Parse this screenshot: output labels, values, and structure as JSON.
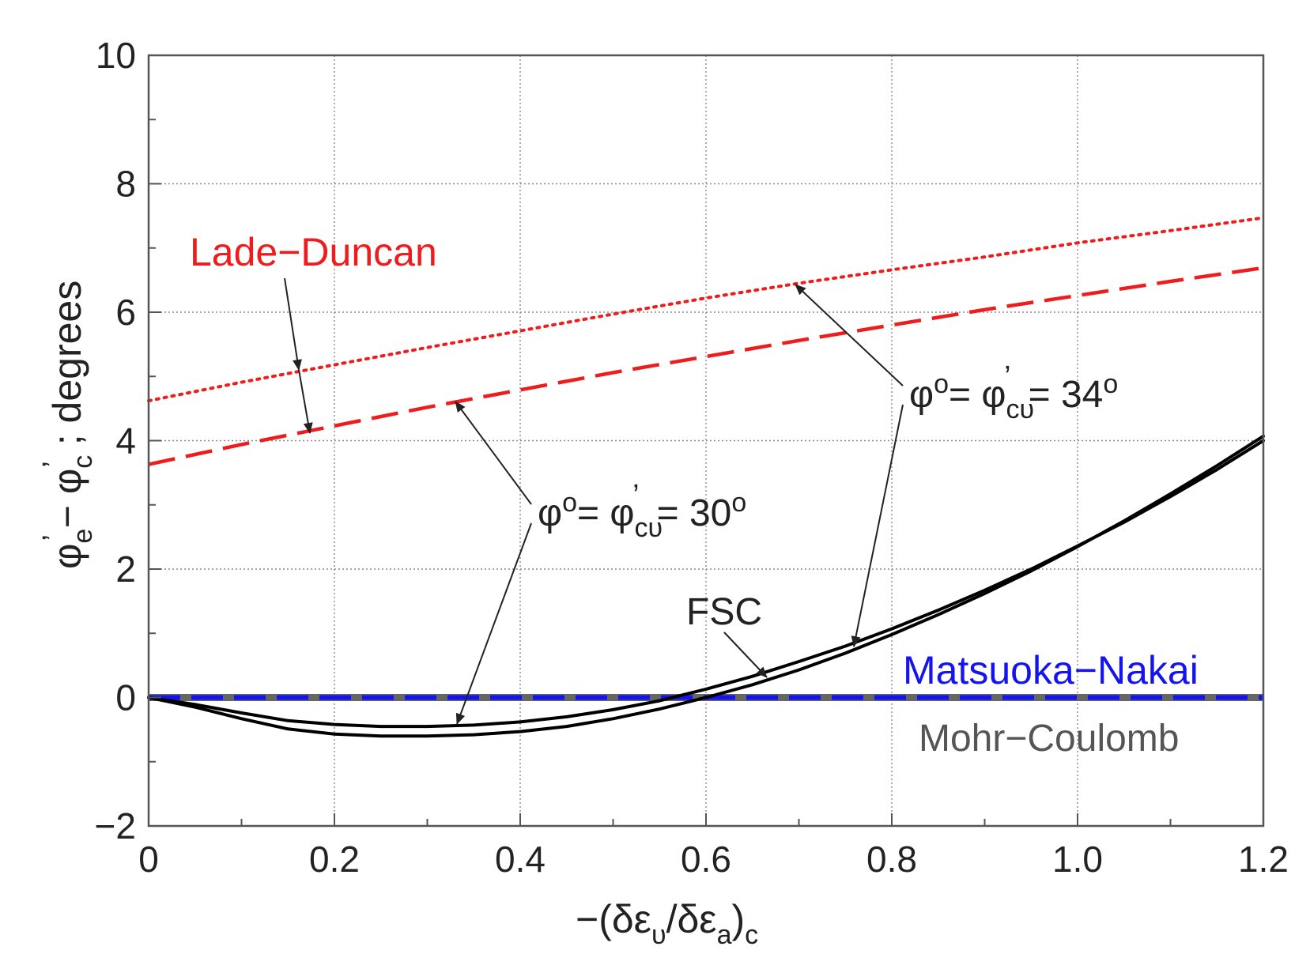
{
  "chart_data": {
    "type": "line",
    "xlabel": "−(δε",
    "xlabel_sub1": "υ",
    "xlabel_mid": "/δε",
    "xlabel_sub2": "a",
    "xlabel_end": ")",
    "xlabel_sub3": "c",
    "ylabel": "φ",
    "ylabel_sub1": "e",
    "ylabel_mid": "− φ",
    "ylabel_sub2": "c",
    "ylabel_end": "; degrees",
    "ylabel_prime": "’",
    "xlim": [
      0,
      1.2
    ],
    "ylim": [
      -2,
      10
    ],
    "x_ticks": [
      {
        "value": 0,
        "label": "0"
      },
      {
        "value": 0.2,
        "label": "0.2"
      },
      {
        "value": 0.4,
        "label": "0.4"
      },
      {
        "value": 0.6,
        "label": "0.6"
      },
      {
        "value": 0.8,
        "label": "0.8"
      },
      {
        "value": 1.0,
        "label": "1.0"
      },
      {
        "value": 1.2,
        "label": "1.2"
      }
    ],
    "y_ticks": [
      {
        "value": -2,
        "label": "−2"
      },
      {
        "value": 0,
        "label": "0"
      },
      {
        "value": 2,
        "label": "2"
      },
      {
        "value": 4,
        "label": "4"
      },
      {
        "value": 6,
        "label": "6"
      },
      {
        "value": 8,
        "label": "8"
      },
      {
        "value": 10,
        "label": "10"
      }
    ],
    "x_minor_step": 0.1,
    "y_minor_step": 1,
    "grid": true,
    "series": [
      {
        "name": "Mohr–Coulomb",
        "style": "solid",
        "color": "#666666",
        "x": [
          0,
          1.2
        ],
        "y": [
          0,
          0
        ]
      },
      {
        "name": "Matsuoka–Nakai",
        "style": "dashed",
        "color": "#1414ee",
        "x": [
          0,
          1.2
        ],
        "y": [
          0,
          0
        ]
      },
      {
        "name": "Lade–Duncan 34°",
        "style": "dotted",
        "color": "#ee1c1c",
        "x": [
          0,
          0.1,
          0.2,
          0.3,
          0.4,
          0.5,
          0.6,
          0.7,
          0.8,
          0.9,
          1.0,
          1.1,
          1.2
        ],
        "y": [
          4.62,
          4.91,
          5.18,
          5.45,
          5.71,
          5.97,
          6.22,
          6.45,
          6.66,
          6.86,
          7.08,
          7.27,
          7.47
        ]
      },
      {
        "name": "Lade–Duncan 30°",
        "style": "dashed",
        "color": "#ee1c1c",
        "x": [
          0,
          0.1,
          0.2,
          0.3,
          0.4,
          0.5,
          0.6,
          0.7,
          0.8,
          0.9,
          1.0,
          1.1,
          1.2
        ],
        "y": [
          3.63,
          3.94,
          4.23,
          4.52,
          4.79,
          5.06,
          5.31,
          5.56,
          5.8,
          6.04,
          6.26,
          6.48,
          6.69
        ]
      },
      {
        "name": "FSC 30°",
        "style": "solid",
        "color": "#000000",
        "x": [
          0,
          0.05,
          0.1,
          0.15,
          0.2,
          0.25,
          0.3,
          0.35,
          0.4,
          0.45,
          0.5,
          0.55,
          0.6,
          0.65,
          0.7,
          0.75,
          0.8,
          0.85,
          0.9,
          0.95,
          1.0,
          1.05,
          1.1,
          1.15,
          1.2
        ],
        "y": [
          0,
          -0.11,
          -0.24,
          -0.36,
          -0.42,
          -0.45,
          -0.45,
          -0.43,
          -0.38,
          -0.3,
          -0.19,
          -0.05,
          0.13,
          0.33,
          0.56,
          0.8,
          1.07,
          1.36,
          1.67,
          2.0,
          2.36,
          2.73,
          3.13,
          3.55,
          4.0
        ]
      },
      {
        "name": "FSC 34°",
        "style": "solid",
        "color": "#000000",
        "x": [
          0,
          0.05,
          0.1,
          0.15,
          0.2,
          0.25,
          0.3,
          0.35,
          0.4,
          0.45,
          0.5,
          0.55,
          0.6,
          0.65,
          0.7,
          0.75,
          0.8,
          0.85,
          0.9,
          0.95,
          1.0,
          1.05,
          1.1,
          1.15,
          1.2
        ],
        "y": [
          0,
          -0.15,
          -0.33,
          -0.49,
          -0.57,
          -0.6,
          -0.6,
          -0.58,
          -0.53,
          -0.45,
          -0.33,
          -0.18,
          0.0,
          0.2,
          0.43,
          0.69,
          0.98,
          1.29,
          1.62,
          1.97,
          2.35,
          2.75,
          3.17,
          3.61,
          4.07
        ]
      }
    ],
    "annotations": {
      "lade_duncan": "Lade−Duncan",
      "phi30": {
        "phi": "φ",
        "sup": "o",
        "eq1": "= φ",
        "sub": "cυ",
        "prime": "’",
        "eq2": "= 30",
        "deg": "o"
      },
      "phi34": {
        "phi": "φ",
        "sup": "o",
        "eq1": "= φ",
        "sub": "cυ",
        "prime": "’",
        "eq2": "= 34",
        "deg": "o"
      },
      "fsc": "FSC",
      "matsuoka": "Matsuoka−Nakai",
      "mohr": "Mohr−Coulomb"
    }
  },
  "colors": {
    "red": "#ee1c1c",
    "blue": "#1414ee",
    "gray": "#666666",
    "black": "#000000",
    "grid": "#8a8a8a"
  }
}
